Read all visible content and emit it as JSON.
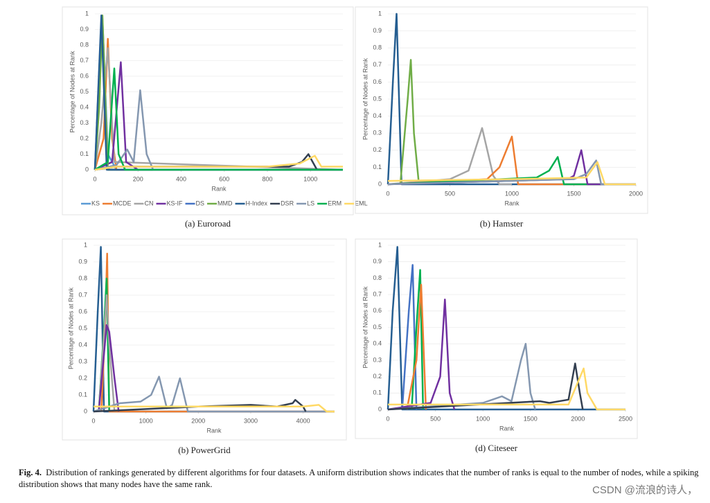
{
  "chart_data": [
    {
      "type": "line",
      "caption": "(a) Euroroad",
      "xlabel": "Rank",
      "ylabel": "Percentage of Nodes at Rank",
      "xlim": [
        0,
        1150
      ],
      "xticks": [
        0,
        200,
        400,
        600,
        800,
        1000
      ],
      "ylim": [
        0,
        1
      ],
      "yticks": [
        0,
        0.1,
        0.2,
        0.3,
        0.4,
        0.5,
        0.6,
        0.7,
        0.8,
        0.9,
        1
      ],
      "grid": true,
      "legend": "bottom",
      "series": [
        {
          "name": "KS",
          "color": "#5b9bd5",
          "x": [
            0,
            15,
            35,
            60,
            100,
            1150
          ],
          "values": [
            0,
            0.4,
            0.97,
            0.1,
            0,
            0
          ]
        },
        {
          "name": "MCDE",
          "color": "#ed7d31",
          "x": [
            0,
            40,
            60,
            80,
            100,
            1150
          ],
          "values": [
            0,
            0.2,
            0.84,
            0.2,
            0,
            0
          ]
        },
        {
          "name": "CN",
          "color": "#a5a5a5",
          "x": [
            0,
            30,
            60,
            90,
            1150
          ],
          "values": [
            0,
            0.3,
            0.78,
            0.05,
            0
          ]
        },
        {
          "name": "KS-IF",
          "color": "#7030a0",
          "x": [
            0,
            80,
            120,
            145,
            200,
            1150
          ],
          "values": [
            0,
            0.05,
            0.69,
            0.05,
            0,
            0
          ]
        },
        {
          "name": "DS",
          "color": "#4472c4",
          "x": [
            0,
            30,
            60,
            1150
          ],
          "values": [
            0,
            0.95,
            0,
            0
          ]
        },
        {
          "name": "MMD",
          "color": "#70ad47",
          "x": [
            0,
            20,
            35,
            60,
            1150
          ],
          "values": [
            0,
            0.4,
            0.99,
            0,
            0
          ]
        },
        {
          "name": "H-Index",
          "color": "#255e91",
          "x": [
            0,
            30,
            55,
            1150
          ],
          "values": [
            0,
            0.99,
            0,
            0
          ]
        },
        {
          "name": "DSR",
          "color": "#333f50",
          "x": [
            0,
            100,
            900,
            960,
            990,
            1030,
            1150
          ],
          "values": [
            0,
            0.02,
            0.02,
            0.05,
            0.1,
            0,
            0
          ]
        },
        {
          "name": "LS",
          "color": "#8497b0",
          "x": [
            0,
            100,
            150,
            180,
            210,
            240,
            270,
            1150
          ],
          "values": [
            0,
            0.03,
            0.13,
            0.05,
            0.51,
            0.1,
            0,
            0
          ]
        },
        {
          "name": "ERM",
          "color": "#00b050",
          "x": [
            0,
            60,
            90,
            110,
            140,
            1150
          ],
          "values": [
            0,
            0.05,
            0.65,
            0.1,
            0,
            0
          ]
        },
        {
          "name": "EML",
          "color": "#ffd966",
          "x": [
            0,
            100,
            800,
            950,
            1020,
            1050,
            1150
          ],
          "values": [
            0,
            0.02,
            0.02,
            0.04,
            0.09,
            0.02,
            0.02
          ]
        }
      ]
    },
    {
      "type": "line",
      "caption": "(b) Hamster",
      "xlabel": "Rank",
      "ylabel": "Percentage of Nodes at Rank",
      "xlim": [
        0,
        2000
      ],
      "xticks": [
        0,
        500,
        1000,
        1500,
        2000
      ],
      "ylim": [
        0,
        1
      ],
      "yticks": [
        0,
        0.1,
        0.2,
        0.3,
        0.4,
        0.5,
        0.6,
        0.7,
        0.8,
        0.9,
        1
      ],
      "grid": true,
      "series": [
        {
          "color": "#255e91",
          "x": [
            0,
            40,
            70,
            110,
            2000
          ],
          "values": [
            0,
            0.6,
            1,
            0,
            0
          ]
        },
        {
          "color": "#70ad47",
          "x": [
            100,
            160,
            185,
            210,
            250
          ],
          "values": [
            0,
            0.5,
            0.73,
            0.3,
            0
          ]
        },
        {
          "color": "#a5a5a5",
          "x": [
            0,
            500,
            650,
            760,
            850,
            900,
            1000
          ],
          "values": [
            0,
            0.03,
            0.08,
            0.33,
            0.05,
            0,
            0
          ]
        },
        {
          "color": "#ed7d31",
          "x": [
            0,
            800,
            900,
            1000,
            1050,
            2000
          ],
          "values": [
            0,
            0.03,
            0.1,
            0.28,
            0,
            0
          ]
        },
        {
          "color": "#00b050",
          "x": [
            0,
            1200,
            1300,
            1370,
            1420,
            2000
          ],
          "values": [
            0,
            0.04,
            0.08,
            0.16,
            0,
            0
          ]
        },
        {
          "color": "#7030a0",
          "x": [
            0,
            1450,
            1500,
            1560,
            1610,
            2000
          ],
          "values": [
            0,
            0.03,
            0.05,
            0.2,
            0,
            0
          ]
        },
        {
          "color": "#8497b0",
          "x": [
            0,
            1500,
            1600,
            1680,
            1720,
            2000
          ],
          "values": [
            0,
            0.03,
            0.06,
            0.14,
            0,
            0
          ]
        },
        {
          "color": "#ffd966",
          "x": [
            0,
            1000,
            1600,
            1690,
            1750,
            2000
          ],
          "values": [
            0.02,
            0.03,
            0.04,
            0.13,
            0,
            0
          ]
        }
      ]
    },
    {
      "type": "line",
      "caption": "(b) PowerGrid",
      "xlabel": "Rank",
      "ylabel": "Percentage of Nodes at Rank",
      "xlim": [
        0,
        4600
      ],
      "xticks": [
        0,
        1000,
        2000,
        3000,
        4000
      ],
      "ylim": [
        0,
        1
      ],
      "yticks": [
        0,
        0.1,
        0.2,
        0.3,
        0.4,
        0.5,
        0.6,
        0.7,
        0.8,
        0.9,
        1
      ],
      "grid": true,
      "series": [
        {
          "color": "#255e91",
          "x": [
            0,
            80,
            140,
            200,
            4600
          ],
          "values": [
            0,
            0.6,
            0.99,
            0,
            0
          ]
        },
        {
          "color": "#ed7d31",
          "x": [
            150,
            220,
            260,
            300,
            4600
          ],
          "values": [
            0,
            0.5,
            0.95,
            0,
            0
          ]
        },
        {
          "color": "#00b050",
          "x": [
            100,
            200,
            250,
            300
          ],
          "values": [
            0,
            0.5,
            0.8,
            0
          ]
        },
        {
          "color": "#a5a5a5",
          "x": [
            100,
            250,
            300,
            400
          ],
          "values": [
            0,
            0.7,
            0.4,
            0
          ]
        },
        {
          "color": "#7030a0",
          "x": [
            100,
            250,
            300,
            400,
            480
          ],
          "values": [
            0,
            0.52,
            0.48,
            0.2,
            0
          ]
        },
        {
          "color": "#8497b0",
          "x": [
            0,
            500,
            900,
            1100,
            1250,
            1400,
            1500,
            1650,
            1800,
            4600
          ],
          "values": [
            0,
            0.05,
            0.06,
            0.1,
            0.21,
            0.02,
            0.04,
            0.2,
            0,
            0
          ]
        },
        {
          "color": "#333f50",
          "x": [
            0,
            2000,
            3000,
            3500,
            3800,
            3850,
            4000,
            4050
          ],
          "values": [
            0,
            0.03,
            0.04,
            0.03,
            0.05,
            0.07,
            0.03,
            0
          ]
        },
        {
          "color": "#ffd966",
          "x": [
            0,
            2000,
            4000,
            4300,
            4450,
            4600
          ],
          "values": [
            0.03,
            0.03,
            0.03,
            0.04,
            0,
            0
          ]
        }
      ]
    },
    {
      "type": "line",
      "caption": "(d) Citeseer",
      "xlabel": "Rank",
      "ylabel": "Percentage of Nodes at Rank",
      "xlim": [
        0,
        2500
      ],
      "xticks": [
        0,
        500,
        1000,
        1500,
        2000,
        2500
      ],
      "ylim": [
        0,
        1
      ],
      "yticks": [
        0,
        0.1,
        0.2,
        0.3,
        0.4,
        0.5,
        0.6,
        0.7,
        0.8,
        0.9,
        1
      ],
      "grid": true,
      "series": [
        {
          "color": "#255e91",
          "x": [
            0,
            50,
            100,
            150,
            2500
          ],
          "values": [
            0,
            0.6,
            0.99,
            0,
            0
          ]
        },
        {
          "color": "#4472c4",
          "x": [
            150,
            220,
            260,
            300
          ],
          "values": [
            0,
            0.6,
            0.88,
            0
          ]
        },
        {
          "color": "#00b050",
          "x": [
            250,
            300,
            340,
            370
          ],
          "values": [
            0,
            0.5,
            0.85,
            0
          ]
        },
        {
          "color": "#ed7d31",
          "x": [
            200,
            300,
            350,
            400
          ],
          "values": [
            0,
            0.3,
            0.76,
            0
          ]
        },
        {
          "color": "#7030a0",
          "x": [
            0,
            450,
            550,
            600,
            650,
            700
          ],
          "values": [
            0,
            0.04,
            0.2,
            0.67,
            0.1,
            0
          ]
        },
        {
          "color": "#8497b0",
          "x": [
            0,
            1000,
            1150,
            1200,
            1300,
            1400,
            1450,
            1500,
            1550
          ],
          "values": [
            0,
            0.04,
            0.07,
            0.08,
            0.05,
            0.3,
            0.4,
            0.1,
            0
          ]
        },
        {
          "color": "#333f50",
          "x": [
            0,
            1600,
            1700,
            1900,
            1970,
            2020,
            2050
          ],
          "values": [
            0,
            0.05,
            0.04,
            0.06,
            0.28,
            0.1,
            0
          ]
        },
        {
          "color": "#ffd966",
          "x": [
            0,
            1900,
            2060,
            2100,
            2200,
            2500
          ],
          "values": [
            0.03,
            0.03,
            0.25,
            0.1,
            0,
            0
          ]
        }
      ]
    }
  ],
  "figure_label": "Fig. 4.",
  "figure_caption": "Distribution of rankings generated by different algorithms for four datasets. A uniform distribution shows indicates that the number of ranks is equal to the number of nodes, while a spiking distribution shows that many nodes have the same rank.",
  "watermark": "CSDN @流浪的诗人，"
}
